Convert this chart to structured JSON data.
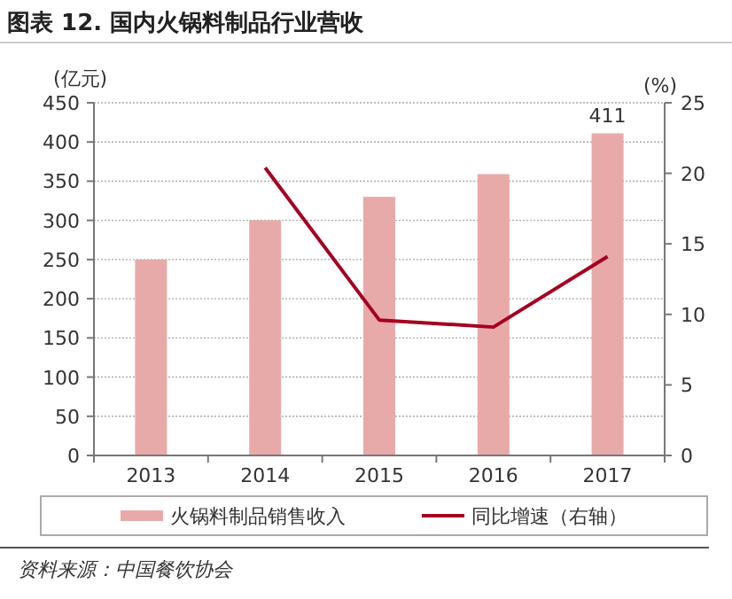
{
  "chart_data": {
    "type": "bar",
    "title": "图表 12. 国内火锅料制品行业营收",
    "ylabel": "(亿元)",
    "y2label": "(%)",
    "categories": [
      "2013",
      "2014",
      "2015",
      "2016",
      "2017"
    ],
    "series": [
      {
        "name": "火锅料制品销售收入",
        "color": "#e8aaa9",
        "values": [
          250,
          300,
          330,
          359,
          411
        ],
        "value_labels": [
          null,
          null,
          null,
          null,
          "411"
        ]
      },
      {
        "name": "同比增速（右轴）",
        "type": "line",
        "axis": "y2",
        "color": "#a50021",
        "values": [
          null,
          20.4,
          9.6,
          9.1,
          14.1
        ]
      }
    ],
    "ylim": [
      0,
      450
    ],
    "yticks": [
      0,
      50,
      100,
      150,
      200,
      250,
      300,
      350,
      400,
      450
    ],
    "y2lim": [
      0,
      25
    ],
    "y2ticks": [
      0,
      5,
      10,
      15,
      20,
      25
    ],
    "grid": "y",
    "legend": "bottom",
    "marker": "none",
    "annotations": [
      "资料来源：中国餐饮协会"
    ]
  }
}
